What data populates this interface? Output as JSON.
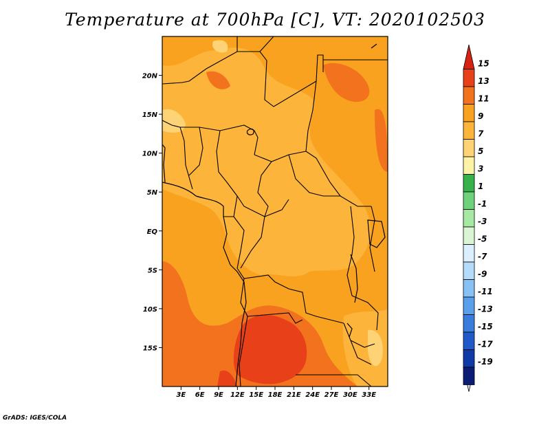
{
  "title": "Temperature at 700hPa [C], VT: 2020102503",
  "credit": "GrADS: IGES/COLA",
  "map": {
    "lon_range": [
      0,
      36
    ],
    "lat_range": [
      -20,
      25
    ],
    "lon_labels": [
      "3E",
      "6E",
      "9E",
      "12E",
      "15E",
      "18E",
      "21E",
      "24E",
      "27E",
      "30E",
      "33E"
    ],
    "lat_labels": [
      "20N",
      "15N",
      "10N",
      "5N",
      "EQ",
      "5S",
      "10S",
      "15S"
    ],
    "colors": {
      "c7_9": "#fdb43a",
      "c9_11": "#f9a21f",
      "c11_13": "#f2721e",
      "c13_15": "#e8411a",
      "c5_7": "#fdd376",
      "c15plus": "#d62213"
    }
  },
  "colorbar": {
    "labels": [
      "15",
      "13",
      "11",
      "9",
      "7",
      "5",
      "3",
      "1",
      "-1",
      "-3",
      "-5",
      "-7",
      "-9",
      "-11",
      "-13",
      "-15",
      "-17",
      "-19"
    ],
    "colors": [
      "#d62213",
      "#e8411a",
      "#f2721e",
      "#f9a21f",
      "#fdb43a",
      "#fdd376",
      "#fdf2a6",
      "#37b24a",
      "#6fd17a",
      "#a6e9a3",
      "#d9f5d4",
      "#dcefff",
      "#b4dcfa",
      "#88c1f4",
      "#5a9fea",
      "#3a7cdd",
      "#1f5ac8",
      "#0f3aa8",
      "#0b1c75"
    ]
  }
}
